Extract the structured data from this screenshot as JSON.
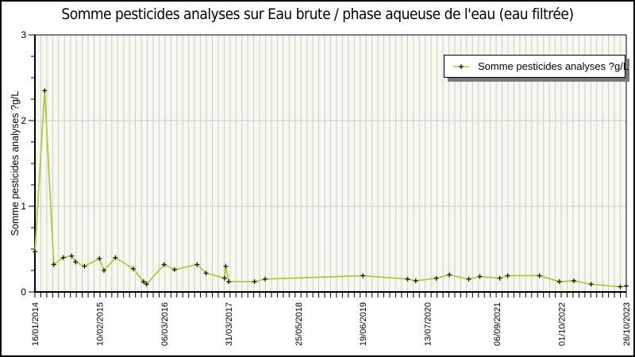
{
  "title": "Somme pesticides analyses sur Eau brute / phase aqueuse de l'eau (eau filtrée)",
  "legend": {
    "label": "Somme pesticides analyses ?g/L",
    "position": "top-right"
  },
  "y_axis": {
    "label": "Somme pesticides analyses ?g/L",
    "tick_labels": [
      "0",
      "1",
      "2",
      "3"
    ],
    "min": 0,
    "max": 3,
    "minor_step": 0.25
  },
  "x_axis": {
    "tick_labels": [
      "16/01/2014",
      "10/02/2015",
      "06/03/2016",
      "31/03/2017",
      "25/05/2018",
      "19/06/2019",
      "13/07/2020",
      "06/09/2021",
      "01/10/2022",
      "26/10/2023"
    ],
    "minor_gridline_count": 100
  },
  "colors": {
    "line": "#a6cb3d",
    "marker": "#1b1b06",
    "plot_bg": "#f8f8ef",
    "grid": "#cccccc",
    "axis": "#000000",
    "text": "#000000",
    "legend_shadow": "#787878"
  },
  "chart_data": {
    "type": "line",
    "title": "Somme pesticides analyses sur Eau brute / phase aqueuse de l'eau (eau filtrée)",
    "xlabel": "",
    "ylabel": "Somme pesticides analyses ?g/L",
    "ylim": [
      0,
      3
    ],
    "grid": "vertical minor gridlines + horizontal gridlines at 1 and 2",
    "legend_position": "top-right",
    "marker": "plus",
    "x": [
      "16/01/2014",
      "16/03/2014",
      "10/05/2014",
      "06/07/2014",
      "26/08/2014",
      "19/09/2014",
      "11/11/2014",
      "10/02/2015",
      "09/03/2015",
      "17/05/2015",
      "02/09/2015",
      "03/11/2015",
      "21/11/2015",
      "06/03/2016",
      "08/05/2016",
      "21/09/2016",
      "14/11/2016",
      "06/03/2017",
      "13/03/2017",
      "31/03/2017",
      "03/09/2017",
      "06/11/2017",
      "19/06/2019",
      "15/03/2020",
      "03/05/2020",
      "04/09/2020",
      "22/11/2020",
      "19/03/2021",
      "25/05/2021",
      "22/09/2021",
      "09/11/2021",
      "20/05/2022",
      "17/09/2022",
      "14/12/2022",
      "28/03/2023",
      "20/09/2023",
      "26/10/2023"
    ],
    "values": [
      0.47,
      2.35,
      0.32,
      0.4,
      0.42,
      0.35,
      0.3,
      0.39,
      0.25,
      0.4,
      0.27,
      0.12,
      0.09,
      0.32,
      0.26,
      0.32,
      0.22,
      0.16,
      0.3,
      0.12,
      0.12,
      0.15,
      0.19,
      0.15,
      0.13,
      0.16,
      0.2,
      0.15,
      0.18,
      0.16,
      0.19,
      0.19,
      0.12,
      0.13,
      0.09,
      0.06,
      0.07
    ],
    "series": [
      {
        "name": "Somme pesticides analyses ?g/L",
        "values": [
          0.47,
          2.35,
          0.32,
          0.4,
          0.42,
          0.35,
          0.3,
          0.39,
          0.25,
          0.4,
          0.27,
          0.12,
          0.09,
          0.32,
          0.26,
          0.32,
          0.22,
          0.16,
          0.3,
          0.12,
          0.12,
          0.15,
          0.19,
          0.15,
          0.13,
          0.16,
          0.2,
          0.15,
          0.18,
          0.16,
          0.19,
          0.19,
          0.12,
          0.13,
          0.09,
          0.06,
          0.07
        ]
      }
    ]
  }
}
